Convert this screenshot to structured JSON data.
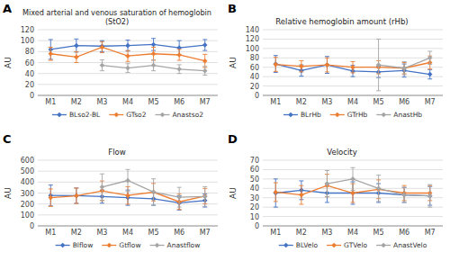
{
  "chart_data": [
    {
      "type": "line",
      "title": "Mixed arterial and venous saturation of hemoglobin\n(StO2)",
      "y_label": "AU",
      "annotations": [
        "A"
      ],
      "categories": [
        "M1",
        "M2",
        "M3",
        "M4",
        "M5",
        "M6",
        "M7"
      ],
      "ylim": [
        0,
        120
      ],
      "yticks": [
        0,
        20,
        40,
        60,
        80,
        100,
        120
      ],
      "grid": true,
      "series": [
        {
          "name": "BLso2-BL",
          "color": "#4472C4",
          "marker": "diamond",
          "values": [
            84,
            91,
            90,
            91,
            93,
            87,
            92
          ],
          "err": [
            18,
            12,
            10,
            10,
            11,
            13,
            10
          ]
        },
        {
          "name": "GTso2",
          "color": "#ED7D31",
          "marker": "diamond",
          "values": [
            76,
            70,
            88,
            72,
            76,
            74,
            63
          ],
          "err": [
            12,
            10,
            10,
            10,
            12,
            10,
            12
          ]
        },
        {
          "name": "Anastso2",
          "color": "#A5A5A5",
          "marker": "diamond",
          "values": [
            null,
            null,
            55,
            50,
            55,
            48,
            45
          ],
          "err": [
            null,
            null,
            10,
            8,
            10,
            8,
            8
          ]
        }
      ]
    },
    {
      "type": "line",
      "title": "Relative hemoglobin amount (rHb)",
      "y_label": "AU",
      "annotations": [
        "B"
      ],
      "categories": [
        "M1",
        "M2",
        "M3",
        "M4",
        "M5",
        "M6",
        "M7"
      ],
      "ylim": [
        0,
        140
      ],
      "yticks": [
        0,
        20,
        40,
        60,
        80,
        100,
        120,
        140
      ],
      "grid": true,
      "series": [
        {
          "name": "BLrHb",
          "color": "#4472C4",
          "marker": "diamond",
          "values": [
            67,
            53,
            65,
            52,
            50,
            53,
            45
          ],
          "err": [
            18,
            12,
            18,
            12,
            12,
            14,
            10
          ]
        },
        {
          "name": "GTrHb",
          "color": "#ED7D31",
          "marker": "diamond",
          "values": [
            66,
            62,
            65,
            60,
            60,
            58,
            70
          ],
          "err": [
            15,
            12,
            15,
            12,
            14,
            12,
            14
          ]
        },
        {
          "name": "AnastHb",
          "color": "#A5A5A5",
          "marker": "diamond",
          "values": [
            null,
            null,
            null,
            null,
            65,
            58,
            80
          ],
          "err": [
            null,
            null,
            null,
            null,
            55,
            14,
            14
          ]
        }
      ]
    },
    {
      "type": "line",
      "title": "Flow",
      "y_label": "AU",
      "annotations": [
        "C"
      ],
      "categories": [
        "M1",
        "M2",
        "M3",
        "M4",
        "M5",
        "M6",
        "M7"
      ],
      "ylim": [
        0,
        600
      ],
      "yticks": [
        0,
        100,
        200,
        300,
        400,
        500,
        600
      ],
      "grid": true,
      "series": [
        {
          "name": "Blflow",
          "color": "#4472C4",
          "marker": "diamond",
          "values": [
            278,
            276,
            268,
            258,
            248,
            210,
            232
          ],
          "err": [
            95,
            70,
            60,
            70,
            60,
            65,
            60
          ]
        },
        {
          "name": "Gtflow",
          "color": "#ED7D31",
          "marker": "diamond",
          "values": [
            258,
            275,
            320,
            278,
            308,
            220,
            272
          ],
          "err": [
            80,
            70,
            90,
            80,
            80,
            70,
            70
          ]
        },
        {
          "name": "Anastflow",
          "color": "#A5A5A5",
          "marker": "diamond",
          "values": [
            null,
            null,
            355,
            415,
            310,
            262,
            268
          ],
          "err": [
            null,
            null,
            120,
            100,
            120,
            90,
            90
          ]
        }
      ]
    },
    {
      "type": "line",
      "title": "Velocity",
      "y_label": "AU",
      "annotations": [
        "D"
      ],
      "categories": [
        "M1",
        "M2",
        "M3",
        "M4",
        "M5",
        "M6",
        "M7"
      ],
      "ylim": [
        0,
        70
      ],
      "yticks": [
        0,
        10,
        20,
        30,
        40,
        50,
        60,
        70
      ],
      "grid": true,
      "series": [
        {
          "name": "BLVelo",
          "color": "#4472C4",
          "marker": "diamond",
          "values": [
            35,
            38,
            35,
            35,
            35,
            33,
            32
          ],
          "err": [
            15,
            10,
            10,
            12,
            10,
            8,
            10
          ]
        },
        {
          "name": "GTVelo",
          "color": "#ED7D31",
          "marker": "diamond",
          "values": [
            36,
            33,
            43,
            35,
            39,
            35,
            35
          ],
          "err": [
            10,
            10,
            12,
            10,
            10,
            8,
            8
          ]
        },
        {
          "name": "AnastVelo",
          "color": "#A5A5A5",
          "marker": "diamond",
          "values": [
            null,
            null,
            45,
            50,
            40,
            33,
            32
          ],
          "err": [
            null,
            null,
            14,
            12,
            14,
            8,
            12
          ]
        }
      ]
    }
  ]
}
